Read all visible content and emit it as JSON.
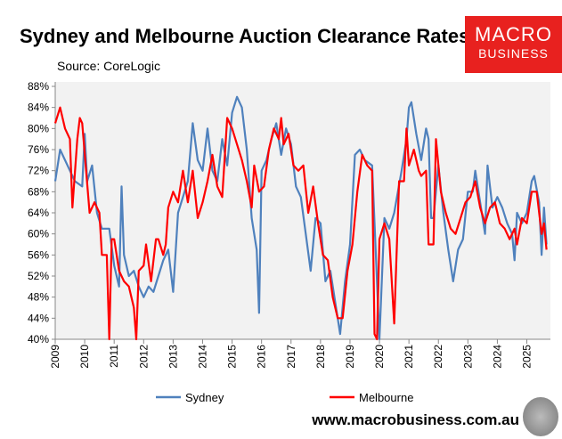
{
  "header": {
    "title": "Sydney and Melbourne Auction Clearance Rates",
    "source": "Source: CoreLogic",
    "logo_line1": "MACRO",
    "logo_line2": "BUSINESS",
    "url": "www.macrobusiness.com.au"
  },
  "chart_data": {
    "type": "line",
    "title": "Sydney and Melbourne Auction Clearance Rates",
    "xlabel": "",
    "ylabel": "",
    "ylim": [
      40,
      88
    ],
    "xlim": [
      2009,
      2025.8
    ],
    "grid": false,
    "legend": "bottom",
    "yticks": [
      "40%",
      "44%",
      "48%",
      "52%",
      "56%",
      "60%",
      "64%",
      "68%",
      "72%",
      "76%",
      "80%",
      "84%",
      "88%"
    ],
    "xticks": [
      "2009",
      "2010",
      "2011",
      "2012",
      "2013",
      "2014",
      "2015",
      "2016",
      "2017",
      "2018",
      "2019",
      "2020",
      "2021",
      "2022",
      "2023",
      "2024",
      "2025"
    ],
    "series": [
      {
        "name": "Sydney",
        "color": "#4f81bd",
        "points": [
          [
            "2009-01",
            70
          ],
          [
            "2009-03",
            76
          ],
          [
            "2009-06",
            73
          ],
          [
            "2009-09",
            70
          ],
          [
            "2009-12",
            69
          ],
          [
            "2010-01",
            79
          ],
          [
            "2010-02",
            70
          ],
          [
            "2010-04",
            73
          ],
          [
            "2010-06",
            64
          ],
          [
            "2010-08",
            61
          ],
          [
            "2010-11",
            61
          ],
          [
            "2011-01",
            54
          ],
          [
            "2011-03",
            50
          ],
          [
            "2011-04",
            69
          ],
          [
            "2011-05",
            56
          ],
          [
            "2011-07",
            52
          ],
          [
            "2011-09",
            53
          ],
          [
            "2011-11",
            50
          ],
          [
            "2012-01",
            48
          ],
          [
            "2012-03",
            50
          ],
          [
            "2012-05",
            49
          ],
          [
            "2012-07",
            52
          ],
          [
            "2012-09",
            55
          ],
          [
            "2012-11",
            57
          ],
          [
            "2013-01",
            49
          ],
          [
            "2013-03",
            64
          ],
          [
            "2013-05",
            67
          ],
          [
            "2013-07",
            70
          ],
          [
            "2013-09",
            81
          ],
          [
            "2013-11",
            74
          ],
          [
            "2014-01",
            72
          ],
          [
            "2014-03",
            80
          ],
          [
            "2014-05",
            72
          ],
          [
            "2014-07",
            70
          ],
          [
            "2014-09",
            78
          ],
          [
            "2014-11",
            73
          ],
          [
            "2015-01",
            83
          ],
          [
            "2015-03",
            86
          ],
          [
            "2015-05",
            84
          ],
          [
            "2015-07",
            76
          ],
          [
            "2015-09",
            63
          ],
          [
            "2015-11",
            57
          ],
          [
            "2015-12",
            45
          ],
          [
            "2016-01",
            72
          ],
          [
            "2016-03",
            74
          ],
          [
            "2016-05",
            78
          ],
          [
            "2016-07",
            81
          ],
          [
            "2016-09",
            75
          ],
          [
            "2016-11",
            80
          ],
          [
            "2017-01",
            77
          ],
          [
            "2017-03",
            69
          ],
          [
            "2017-05",
            67
          ],
          [
            "2017-07",
            60
          ],
          [
            "2017-09",
            53
          ],
          [
            "2017-11",
            63
          ],
          [
            "2018-01",
            62
          ],
          [
            "2018-03",
            51
          ],
          [
            "2018-05",
            53
          ],
          [
            "2018-07",
            47
          ],
          [
            "2018-09",
            41
          ],
          [
            "2018-11",
            51
          ],
          [
            "2019-01",
            58
          ],
          [
            "2019-03",
            75
          ],
          [
            "2019-05",
            76
          ],
          [
            "2019-07",
            74
          ],
          [
            "2019-10",
            73
          ],
          [
            "2020-01",
            40
          ],
          [
            "2020-03",
            63
          ],
          [
            "2020-05",
            61
          ],
          [
            "2020-07",
            64
          ],
          [
            "2020-10",
            72
          ],
          [
            "2020-12",
            78
          ],
          [
            "2021-01",
            84
          ],
          [
            "2021-02",
            85
          ],
          [
            "2021-04",
            79
          ],
          [
            "2021-06",
            74
          ],
          [
            "2021-08",
            80
          ],
          [
            "2021-09",
            78
          ],
          [
            "2021-10",
            63
          ],
          [
            "2021-11",
            63
          ],
          [
            "2022-01",
            73
          ],
          [
            "2022-03",
            64
          ],
          [
            "2022-05",
            57
          ],
          [
            "2022-07",
            51
          ],
          [
            "2022-09",
            57
          ],
          [
            "2022-11",
            59
          ],
          [
            "2023-01",
            68
          ],
          [
            "2023-03",
            68
          ],
          [
            "2023-04",
            72
          ],
          [
            "2023-06",
            66
          ],
          [
            "2023-08",
            60
          ],
          [
            "2023-09",
            73
          ],
          [
            "2023-11",
            65
          ],
          [
            "2024-01",
            67
          ],
          [
            "2024-03",
            65
          ],
          [
            "2024-05",
            62
          ],
          [
            "2024-07",
            60
          ],
          [
            "2024-08",
            55
          ],
          [
            "2024-09",
            64
          ],
          [
            "2024-11",
            62
          ],
          [
            "2025-01",
            64
          ],
          [
            "2025-03",
            70
          ],
          [
            "2025-04",
            71
          ],
          [
            "2025-06",
            66
          ],
          [
            "2025-07",
            56
          ],
          [
            "2025-08",
            65
          ],
          [
            "2025-09",
            58
          ]
        ]
      },
      {
        "name": "Melbourne",
        "color": "#ff0000",
        "points": [
          [
            "2009-01",
            81
          ],
          [
            "2009-03",
            84
          ],
          [
            "2009-05",
            80
          ],
          [
            "2009-07",
            78
          ],
          [
            "2009-08",
            65
          ],
          [
            "2009-10",
            78
          ],
          [
            "2009-11",
            82
          ],
          [
            "2009-12",
            81
          ],
          [
            "2010-03",
            64
          ],
          [
            "2010-05",
            66
          ],
          [
            "2010-07",
            64
          ],
          [
            "2010-08",
            56
          ],
          [
            "2010-10",
            56
          ],
          [
            "2010-11",
            40
          ],
          [
            "2010-12",
            59
          ],
          [
            "2011-01",
            59
          ],
          [
            "2011-03",
            53
          ],
          [
            "2011-05",
            51
          ],
          [
            "2011-07",
            50
          ],
          [
            "2011-09",
            46
          ],
          [
            "2011-10",
            40
          ],
          [
            "2011-11",
            53
          ],
          [
            "2012-01",
            54
          ],
          [
            "2012-02",
            58
          ],
          [
            "2012-04",
            51
          ],
          [
            "2012-06",
            59
          ],
          [
            "2012-07",
            59
          ],
          [
            "2012-09",
            56
          ],
          [
            "2012-10",
            58
          ],
          [
            "2012-11",
            65
          ],
          [
            "2013-01",
            68
          ],
          [
            "2013-03",
            66
          ],
          [
            "2013-05",
            72
          ],
          [
            "2013-07",
            66
          ],
          [
            "2013-09",
            72
          ],
          [
            "2013-11",
            63
          ],
          [
            "2014-01",
            66
          ],
          [
            "2014-03",
            70
          ],
          [
            "2014-05",
            75
          ],
          [
            "2014-07",
            69
          ],
          [
            "2014-09",
            67
          ],
          [
            "2014-11",
            82
          ],
          [
            "2015-01",
            80
          ],
          [
            "2015-03",
            77
          ],
          [
            "2015-05",
            74
          ],
          [
            "2015-07",
            70
          ],
          [
            "2015-09",
            65
          ],
          [
            "2015-10",
            73
          ],
          [
            "2015-12",
            68
          ],
          [
            "2016-02",
            69
          ],
          [
            "2016-04",
            76
          ],
          [
            "2016-06",
            80
          ],
          [
            "2016-08",
            78
          ],
          [
            "2016-09",
            82
          ],
          [
            "2016-10",
            77
          ],
          [
            "2016-12",
            79
          ],
          [
            "2017-02",
            73
          ],
          [
            "2017-04",
            72
          ],
          [
            "2017-06",
            73
          ],
          [
            "2017-08",
            64
          ],
          [
            "2017-10",
            69
          ],
          [
            "2017-12",
            62
          ],
          [
            "2018-02",
            56
          ],
          [
            "2018-04",
            55
          ],
          [
            "2018-06",
            48
          ],
          [
            "2018-08",
            44
          ],
          [
            "2018-10",
            44
          ],
          [
            "2018-12",
            53
          ],
          [
            "2019-02",
            58
          ],
          [
            "2019-04",
            68
          ],
          [
            "2019-06",
            75
          ],
          [
            "2019-08",
            73
          ],
          [
            "2019-10",
            72
          ],
          [
            "2019-11",
            41
          ],
          [
            "2019-12",
            40
          ],
          [
            "2020-01",
            59
          ],
          [
            "2020-03",
            62
          ],
          [
            "2020-05",
            59
          ],
          [
            "2020-07",
            43
          ],
          [
            "2020-09",
            70
          ],
          [
            "2020-11",
            70
          ],
          [
            "2020-12",
            80
          ],
          [
            "2021-01",
            73
          ],
          [
            "2021-03",
            76
          ],
          [
            "2021-05",
            72
          ],
          [
            "2021-06",
            71
          ],
          [
            "2021-08",
            72
          ],
          [
            "2021-09",
            58
          ],
          [
            "2021-11",
            58
          ],
          [
            "2021-12",
            78
          ],
          [
            "2022-02",
            68
          ],
          [
            "2022-04",
            64
          ],
          [
            "2022-06",
            61
          ],
          [
            "2022-08",
            60
          ],
          [
            "2022-10",
            63
          ],
          [
            "2022-12",
            66
          ],
          [
            "2023-02",
            67
          ],
          [
            "2023-04",
            70
          ],
          [
            "2023-06",
            65
          ],
          [
            "2023-08",
            62
          ],
          [
            "2023-10",
            65
          ],
          [
            "2023-12",
            66
          ],
          [
            "2024-02",
            62
          ],
          [
            "2024-04",
            61
          ],
          [
            "2024-06",
            59
          ],
          [
            "2024-08",
            61
          ],
          [
            "2024-09",
            58
          ],
          [
            "2024-11",
            63
          ],
          [
            "2025-01",
            62
          ],
          [
            "2025-03",
            68
          ],
          [
            "2025-05",
            68
          ],
          [
            "2025-07",
            60
          ],
          [
            "2025-08",
            62
          ],
          [
            "2025-09",
            57
          ]
        ]
      }
    ]
  }
}
